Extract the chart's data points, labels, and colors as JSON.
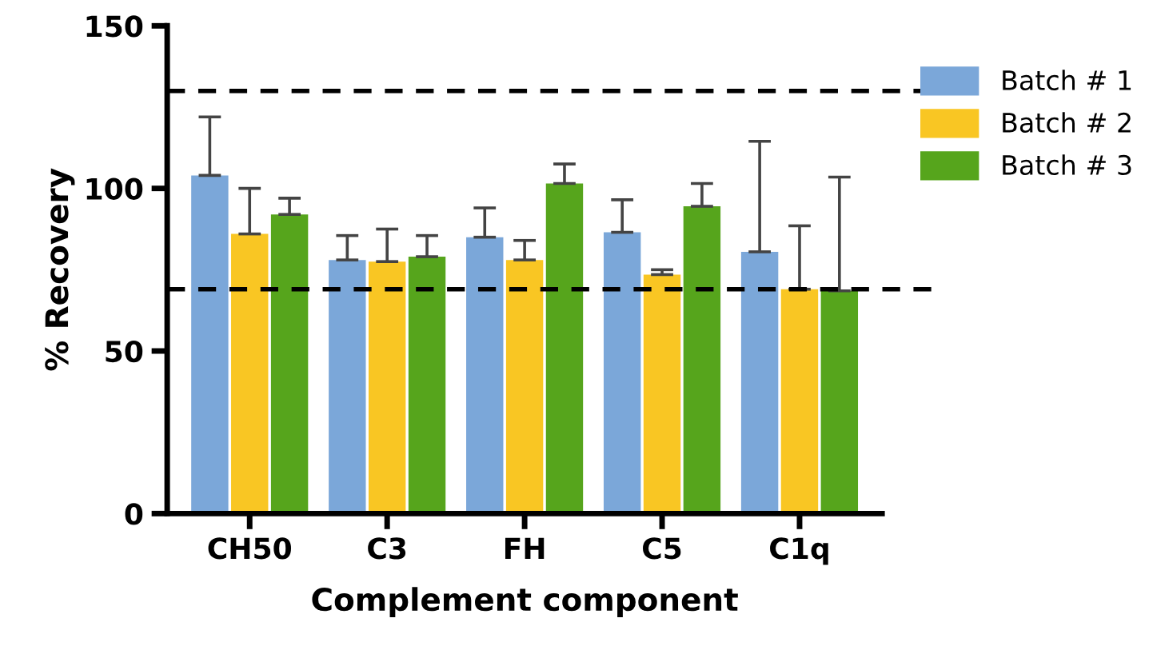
{
  "chart_data": {
    "type": "bar",
    "xlabel": "Complement component",
    "ylabel": "% Recovery",
    "categories": [
      "CH50",
      "C3",
      "FH",
      "C5",
      "C1q"
    ],
    "series": [
      {
        "name": "Batch # 1",
        "color": "#7ba7d9",
        "values": [
          104,
          78,
          85,
          86.5,
          80.5
        ],
        "errors": [
          [
            104,
            122
          ],
          [
            78,
            85.5
          ],
          [
            85,
            94
          ],
          [
            86.5,
            96.5
          ],
          [
            80.5,
            114.5
          ]
        ]
      },
      {
        "name": "Batch # 2",
        "color": "#f9c623",
        "values": [
          86,
          77.5,
          78,
          73.5,
          69
        ],
        "errors": [
          [
            86,
            100
          ],
          [
            77.5,
            87.5
          ],
          [
            78,
            84
          ],
          [
            73.5,
            75
          ],
          [
            69,
            88.5
          ]
        ]
      },
      {
        "name": "Batch # 3",
        "color": "#56a51c",
        "values": [
          92,
          79,
          101.5,
          94.5,
          68.5
        ],
        "errors": [
          [
            92,
            97
          ],
          [
            79,
            85.5
          ],
          [
            101.5,
            107.5
          ],
          [
            94.5,
            101.5
          ],
          [
            68.5,
            103.5
          ]
        ]
      }
    ],
    "ylim": [
      0,
      150
    ],
    "yticks": [
      0,
      50,
      100,
      150
    ],
    "ref_lines": [
      {
        "axis": "y",
        "value": 130,
        "line_style": "dashed",
        "color": "#000000"
      },
      {
        "axis": "y",
        "value": 69,
        "line_style": "dashed",
        "color": "#000000"
      }
    ],
    "grid": false,
    "legend": "right"
  }
}
